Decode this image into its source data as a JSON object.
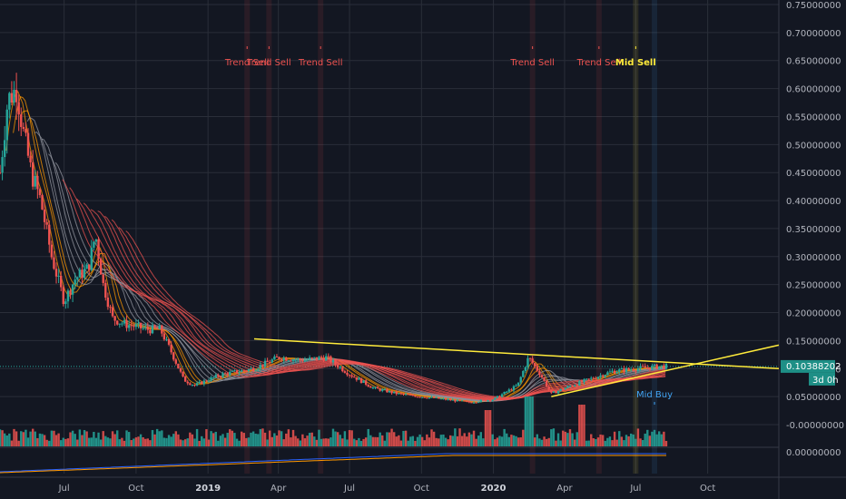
{
  "colors": {
    "background": "#131722",
    "grid": "#2a2e39",
    "bull": "#26a69a",
    "bear": "#ef5350",
    "trendline": "#ffeb3b",
    "ribbon_gray": "#9598a1",
    "ribbon_red": "#ef5350",
    "ribbon_orange": "#ff9800",
    "price_label_bg": "#1e8f86",
    "countdown_bg": "#1e8f86"
  },
  "price_axis": {
    "ticks": [
      "0.75000000",
      "0.70000000",
      "0.65000000",
      "0.60000000",
      "0.55000000",
      "0.50000000",
      "0.45000000",
      "0.40000000",
      "0.35000000",
      "0.30000000",
      "0.25000000",
      "0.20000000",
      "0.15000000",
      "0.10000000",
      "0.05000000",
      "-0.00000000"
    ],
    "tick_values": [
      0.75,
      0.7,
      0.65,
      0.6,
      0.55,
      0.5,
      0.45,
      0.4,
      0.35,
      0.3,
      0.25,
      0.2,
      0.15,
      0.1,
      0.05,
      0.0
    ],
    "range": [
      0.0,
      0.75
    ],
    "current_price_label": "0.10388202",
    "current_price_value": 0.10388202,
    "countdown_label": "3d 0h"
  },
  "sub_axis": {
    "tick_label": "0.00000000"
  },
  "time_axis": {
    "labels": [
      {
        "text": "Jul",
        "date": "2018-07-01",
        "bold": false
      },
      {
        "text": "Oct",
        "date": "2018-10-01",
        "bold": false
      },
      {
        "text": "2019",
        "date": "2019-01-01",
        "bold": true
      },
      {
        "text": "Apr",
        "date": "2019-04-01",
        "bold": false
      },
      {
        "text": "Jul",
        "date": "2019-07-01",
        "bold": false
      },
      {
        "text": "Oct",
        "date": "2019-10-01",
        "bold": false
      },
      {
        "text": "2020",
        "date": "2020-01-01",
        "bold": true
      },
      {
        "text": "Apr",
        "date": "2020-04-01",
        "bold": false
      },
      {
        "text": "Jul",
        "date": "2020-07-01",
        "bold": false
      },
      {
        "text": "Oct",
        "date": "2020-10-01",
        "bold": false
      }
    ]
  },
  "signals": [
    {
      "label": "Trend Sell",
      "date": "2019-02-20",
      "kind": "sell"
    },
    {
      "label": "Trend Sell",
      "date": "2019-03-20",
      "kind": "sell"
    },
    {
      "label": "Trend Sell",
      "date": "2019-05-25",
      "kind": "sell"
    },
    {
      "label": "Trend Sell",
      "date": "2020-02-20",
      "kind": "sell"
    },
    {
      "label": "Trend Sell",
      "date": "2020-05-15",
      "kind": "sell"
    },
    {
      "label": "Mid Sell",
      "date": "2020-07-01",
      "kind": "mid_sell"
    },
    {
      "label": "Mid Buy",
      "date": "2020-07-25",
      "kind": "mid_buy"
    }
  ],
  "chart_data": {
    "type": "candlestick",
    "title": "",
    "xlabel": "",
    "ylabel": "",
    "ylim": [
      0.0,
      0.75
    ],
    "x_range": [
      "2018-04-10",
      "2020-12-31"
    ],
    "trendlines": [
      {
        "name": "upper",
        "points": [
          [
            "2019-03-01",
            0.153
          ],
          [
            "2020-12-31",
            0.1
          ]
        ]
      },
      {
        "name": "lower",
        "points": [
          [
            "2020-03-15",
            0.05
          ],
          [
            "2020-12-31",
            0.142
          ]
        ]
      }
    ],
    "close_path": [
      [
        "2018-04-10",
        0.45
      ],
      [
        "2018-04-20",
        0.58
      ],
      [
        "2018-05-01",
        0.6
      ],
      [
        "2018-05-10",
        0.52
      ],
      [
        "2018-05-20",
        0.45
      ],
      [
        "2018-06-01",
        0.4
      ],
      [
        "2018-06-15",
        0.3
      ],
      [
        "2018-07-01",
        0.22
      ],
      [
        "2018-07-15",
        0.26
      ],
      [
        "2018-08-01",
        0.28
      ],
      [
        "2018-08-10",
        0.34
      ],
      [
        "2018-08-20",
        0.25
      ],
      [
        "2018-09-01",
        0.19
      ],
      [
        "2018-09-15",
        0.18
      ],
      [
        "2018-10-01",
        0.175
      ],
      [
        "2018-10-15",
        0.17
      ],
      [
        "2018-11-01",
        0.17
      ],
      [
        "2018-11-15",
        0.13
      ],
      [
        "2018-12-01",
        0.08
      ],
      [
        "2018-12-15",
        0.07
      ],
      [
        "2019-01-01",
        0.08
      ],
      [
        "2019-01-20",
        0.09
      ],
      [
        "2019-02-10",
        0.095
      ],
      [
        "2019-03-01",
        0.1
      ],
      [
        "2019-04-01",
        0.12
      ],
      [
        "2019-05-01",
        0.115
      ],
      [
        "2019-06-01",
        0.12
      ],
      [
        "2019-07-01",
        0.09
      ],
      [
        "2019-08-01",
        0.065
      ],
      [
        "2019-09-01",
        0.055
      ],
      [
        "2019-10-01",
        0.05
      ],
      [
        "2019-11-01",
        0.045
      ],
      [
        "2019-12-01",
        0.04
      ],
      [
        "2020-01-01",
        0.045
      ],
      [
        "2020-02-01",
        0.07
      ],
      [
        "2020-02-15",
        0.12
      ],
      [
        "2020-03-01",
        0.09
      ],
      [
        "2020-03-15",
        0.055
      ],
      [
        "2020-04-01",
        0.065
      ],
      [
        "2020-05-01",
        0.08
      ],
      [
        "2020-06-01",
        0.095
      ],
      [
        "2020-07-01",
        0.1
      ],
      [
        "2020-08-01",
        0.104
      ]
    ]
  }
}
